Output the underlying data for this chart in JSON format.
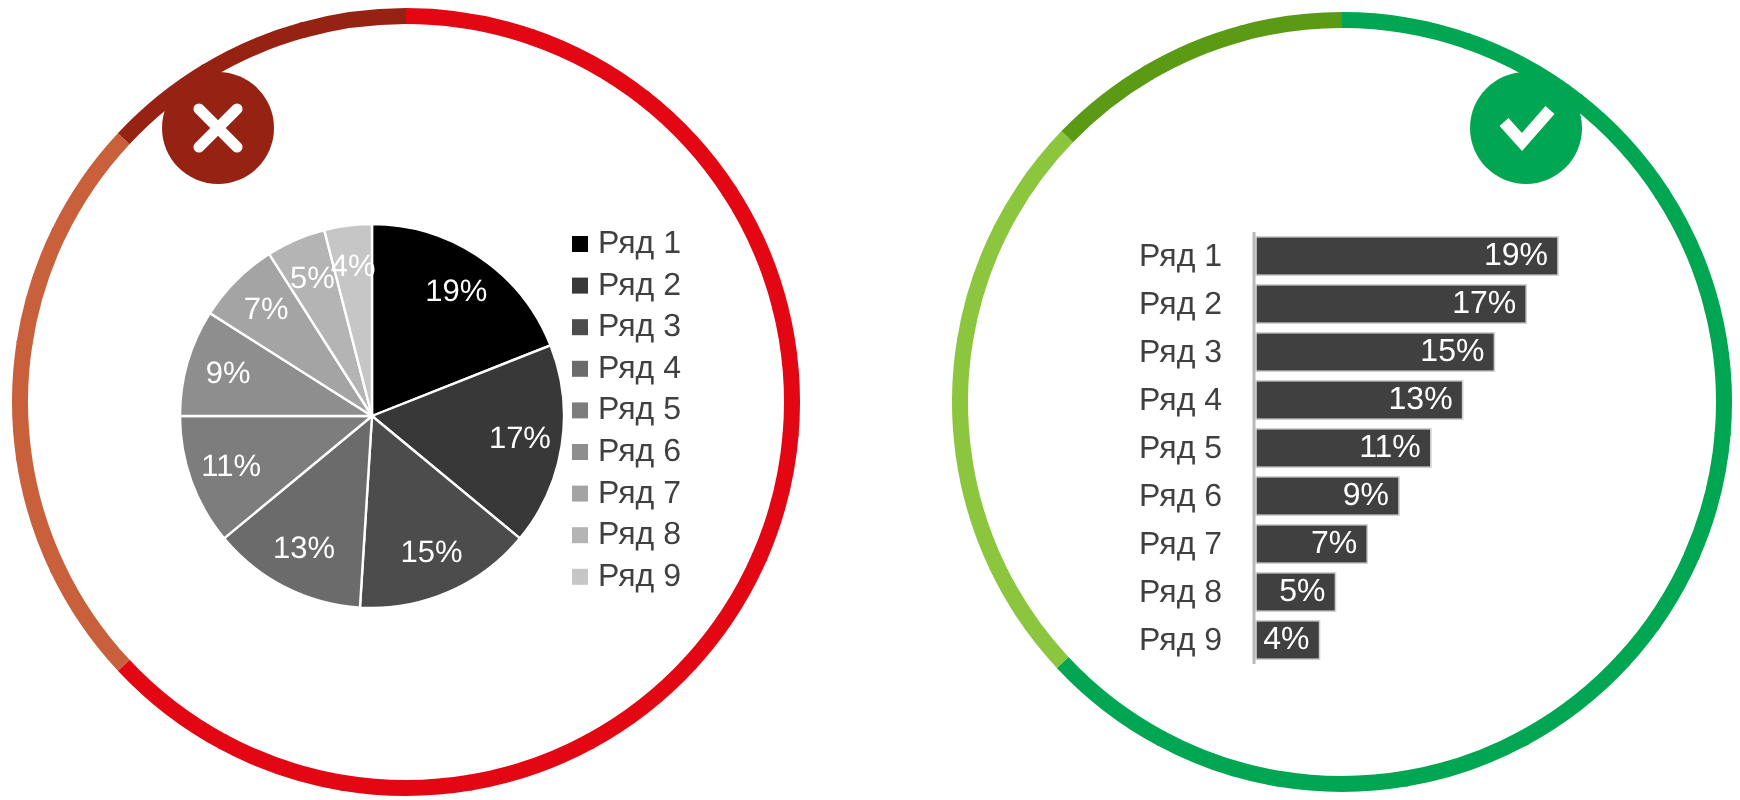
{
  "chart_data": [
    {
      "type": "pie",
      "categories": [
        "Ряд 1",
        "Ряд 2",
        "Ряд 3",
        "Ряд 4",
        "Ряд 5",
        "Ряд 6",
        "Ряд 7",
        "Ряд 8",
        "Ряд 9"
      ],
      "values": [
        19,
        17,
        15,
        13,
        11,
        9,
        7,
        5,
        4
      ],
      "value_labels": [
        "19%",
        "17%",
        "15%",
        "13%",
        "11%",
        "9%",
        "7%",
        "5%",
        "4%"
      ],
      "colors": [
        "#000000",
        "#383838",
        "#4c4c4c",
        "#6b6b6b",
        "#7d7d7d",
        "#8e8e8e",
        "#a4a4a4",
        "#b4b4b4",
        "#c6c6c6"
      ],
      "legend": "right"
    },
    {
      "type": "bar",
      "orientation": "horizontal",
      "categories": [
        "Ряд 1",
        "Ряд 2",
        "Ряд 3",
        "Ряд 4",
        "Ряд 5",
        "Ряд 6",
        "Ряд 7",
        "Ряд 8",
        "Ряд 9"
      ],
      "values": [
        19,
        17,
        15,
        13,
        11,
        9,
        7,
        5,
        4
      ],
      "value_labels": [
        "19%",
        "17%",
        "15%",
        "13%",
        "11%",
        "9%",
        "7%",
        "5%",
        "4%"
      ],
      "color": "#404040"
    }
  ]
}
